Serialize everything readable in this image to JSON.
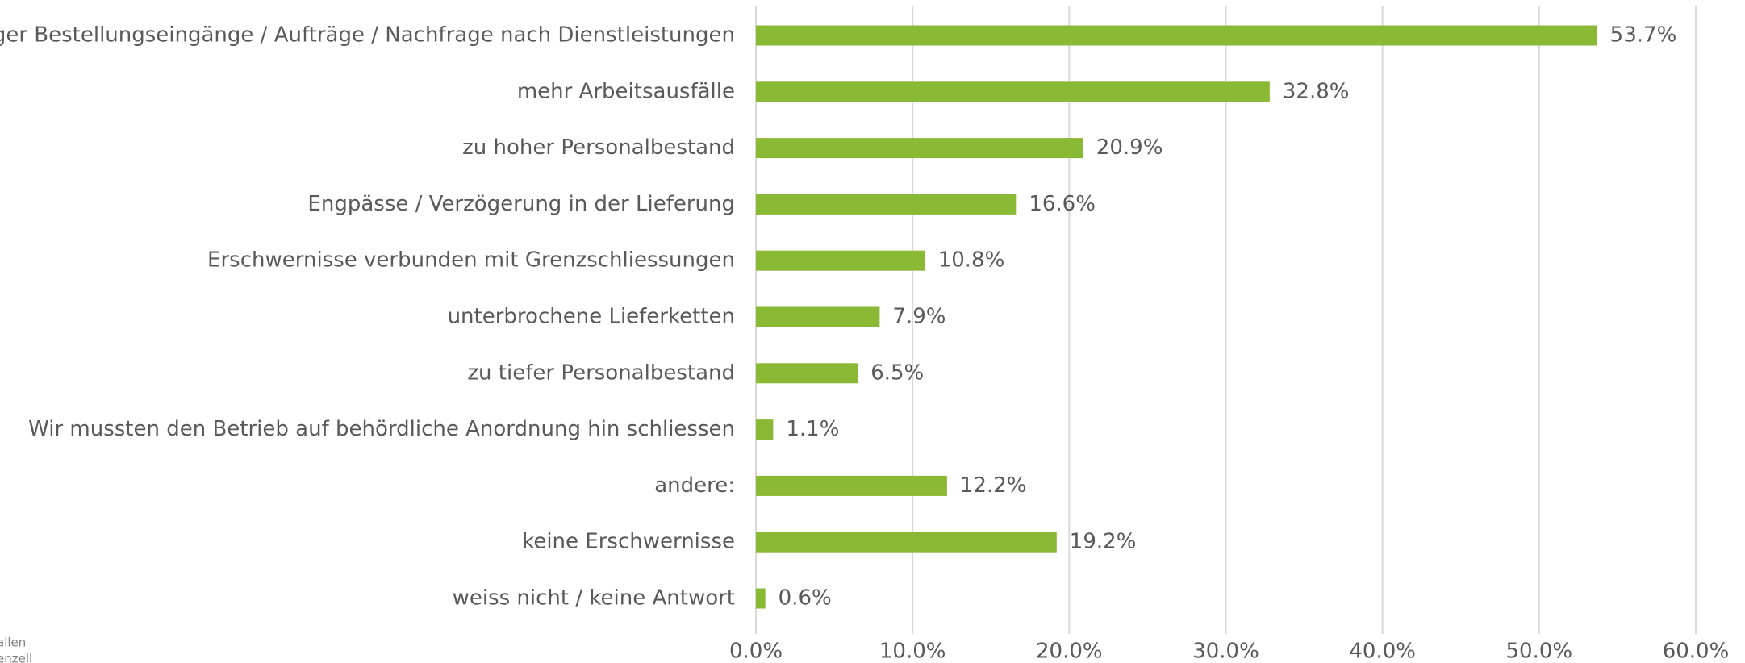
{
  "chart_data": {
    "type": "barh",
    "categories": [
      "weniger Bestellungseingänge / Aufträge / Nachfrage nach Dienstleistungen",
      "mehr Arbeitsausfälle",
      "zu hoher Personalbestand",
      "Engpässe / Verzögerung in der Lieferung",
      "Erschwernisse verbunden mit Grenzschliessungen",
      "unterbrochene Lieferketten",
      "zu tiefer Personalbestand",
      "Wir mussten den Betrieb auf behördliche Anordnung hin schliessen",
      "andere:",
      "keine Erschwernisse",
      "weiss nicht / keine Antwort"
    ],
    "values": [
      53.7,
      32.8,
      20.9,
      16.6,
      10.8,
      7.9,
      6.5,
      1.1,
      12.2,
      19.2,
      0.6
    ],
    "value_labels": [
      "53.7%",
      "32.8%",
      "20.9%",
      "16.6%",
      "10.8%",
      "7.9%",
      "6.5%",
      "1.1%",
      "12.2%",
      "19.2%",
      "0.6%"
    ],
    "color": "#8aba35",
    "xlim": [
      0,
      60
    ],
    "xticks": [
      {
        "value": 0,
        "label": "0.0%"
      },
      {
        "value": 10,
        "label": "10.0%"
      },
      {
        "value": 20,
        "label": "20.0%"
      },
      {
        "value": 30,
        "label": "30.0%"
      },
      {
        "value": 40,
        "label": "40.0%"
      },
      {
        "value": 50,
        "label": "50.0%"
      },
      {
        "value": 60,
        "label": "60.0%"
      }
    ],
    "grid": true,
    "footnote": [
      "allen",
      "enzell"
    ]
  }
}
